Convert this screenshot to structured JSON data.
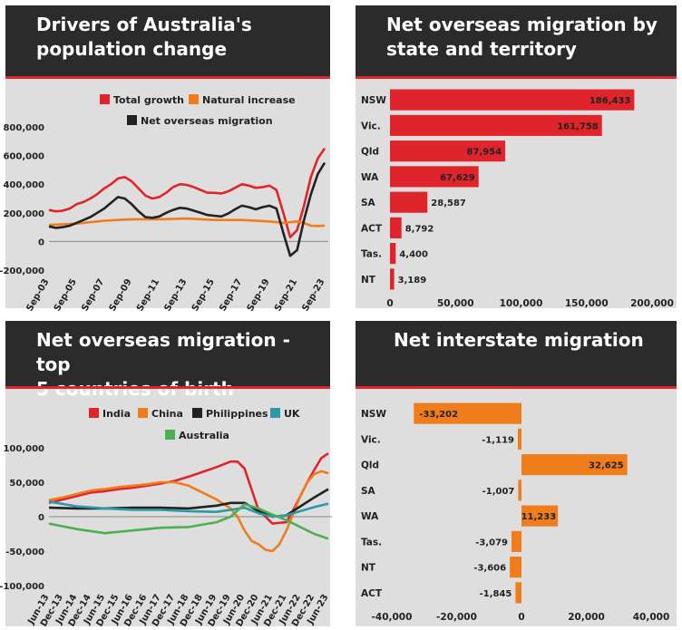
{
  "charts": [
    {
      "title_line1": "Drivers of Australia's",
      "title_line2": "population change",
      "chart_data": {
        "type": "line",
        "title": "Drivers of Australia's population change",
        "x_tick_labels": [
          "Sep-03",
          "Sep-05",
          "Sep-07",
          "Sep-09",
          "Sep-11",
          "Sep-13",
          "Sep-15",
          "Sep-17",
          "Sep-19",
          "Sep-21",
          "Sep-23"
        ],
        "x_start": "Sep-03",
        "x_end": "Sep-23",
        "ylim": [
          -200000,
          800000
        ],
        "y_ticks": [
          800000,
          600000,
          400000,
          200000,
          0,
          -200000
        ],
        "y_tick_labels": [
          "800,000",
          "600,000",
          "400,000",
          "200,000",
          "0",
          "-200,000"
        ],
        "legend_position": "top",
        "series": [
          {
            "name": "Total growth",
            "color": "#e0242c",
            "x": [
              "Sep-03",
              "Mar-04",
              "Sep-04",
              "Mar-05",
              "Sep-05",
              "Mar-06",
              "Sep-06",
              "Mar-07",
              "Sep-07",
              "Mar-08",
              "Sep-08",
              "Mar-09",
              "Sep-09",
              "Mar-10",
              "Sep-10",
              "Mar-11",
              "Sep-11",
              "Mar-12",
              "Sep-12",
              "Mar-13",
              "Sep-13",
              "Mar-14",
              "Sep-14",
              "Mar-15",
              "Sep-15",
              "Mar-16",
              "Sep-16",
              "Mar-17",
              "Sep-17",
              "Mar-18",
              "Sep-18",
              "Mar-19",
              "Sep-19",
              "Mar-20",
              "Sep-20",
              "Mar-21",
              "Sep-21",
              "Mar-22",
              "Sep-22",
              "Mar-23",
              "Sep-23"
            ],
            "y": [
              220000,
              210000,
              215000,
              230000,
              260000,
              275000,
              300000,
              330000,
              370000,
              400000,
              440000,
              450000,
              420000,
              370000,
              320000,
              300000,
              310000,
              340000,
              380000,
              400000,
              395000,
              380000,
              360000,
              340000,
              340000,
              335000,
              350000,
              375000,
              400000,
              390000,
              375000,
              380000,
              390000,
              360000,
              200000,
              30000,
              80000,
              250000,
              450000,
              580000,
              650000
            ]
          },
          {
            "name": "Natural increase",
            "color": "#f07d1c",
            "x": [
              "Sep-03",
              "Sep-05",
              "Sep-07",
              "Sep-09",
              "Sep-11",
              "Sep-13",
              "Sep-15",
              "Sep-17",
              "Sep-19",
              "Mar-20",
              "Sep-20",
              "Mar-21",
              "Sep-21",
              "Mar-22",
              "Sep-22",
              "Mar-23",
              "Sep-23"
            ],
            "y": [
              115000,
              125000,
              145000,
              155000,
              155000,
              160000,
              150000,
              150000,
              140000,
              135000,
              130000,
              135000,
              140000,
              130000,
              110000,
              108000,
              110000
            ]
          },
          {
            "name": "Net overseas migration",
            "color": "#222222",
            "x": [
              "Sep-03",
              "Mar-04",
              "Sep-04",
              "Mar-05",
              "Sep-05",
              "Mar-06",
              "Sep-06",
              "Mar-07",
              "Sep-07",
              "Mar-08",
              "Sep-08",
              "Mar-09",
              "Sep-09",
              "Mar-10",
              "Sep-10",
              "Mar-11",
              "Sep-11",
              "Mar-12",
              "Sep-12",
              "Mar-13",
              "Sep-13",
              "Mar-14",
              "Sep-14",
              "Mar-15",
              "Sep-15",
              "Mar-16",
              "Sep-16",
              "Mar-17",
              "Sep-17",
              "Mar-18",
              "Sep-18",
              "Mar-19",
              "Sep-19",
              "Mar-20",
              "Sep-20",
              "Mar-21",
              "Sep-21",
              "Mar-22",
              "Sep-22",
              "Mar-23",
              "Sep-23"
            ],
            "y": [
              105000,
              95000,
              100000,
              110000,
              130000,
              150000,
              170000,
              200000,
              230000,
              270000,
              310000,
              300000,
              260000,
              210000,
              170000,
              165000,
              175000,
              200000,
              220000,
              235000,
              230000,
              215000,
              200000,
              185000,
              180000,
              175000,
              195000,
              225000,
              250000,
              240000,
              225000,
              240000,
              250000,
              230000,
              60000,
              -100000,
              -60000,
              150000,
              330000,
              470000,
              550000
            ]
          }
        ]
      }
    },
    {
      "title_line1": "Net overseas migration by",
      "title_line2": "state and territory",
      "chart_data": {
        "type": "bar",
        "orientation": "horizontal",
        "title": "Net overseas migration by state and territory",
        "categories": [
          "NSW",
          "Vic.",
          "Qld",
          "WA",
          "SA",
          "ACT",
          "Tas.",
          "NT"
        ],
        "values": [
          186433,
          161758,
          87954,
          67629,
          28587,
          8792,
          4400,
          3189
        ],
        "value_labels": [
          "186,433",
          "161,758",
          "87,954",
          "67,629",
          "28,587",
          "8,792",
          "4,400",
          "3,189"
        ],
        "bar_color": "#e0242c",
        "xlim": [
          0,
          200000
        ],
        "x_ticks": [
          0,
          50000,
          100000,
          150000,
          200000
        ],
        "x_tick_labels": [
          "0",
          "50,000",
          "100,000",
          "150,000",
          "200,000"
        ]
      }
    },
    {
      "title_line1": "Net overseas migration - top",
      "title_line2": "5 countries of birth",
      "chart_data": {
        "type": "line",
        "title": "Net overseas migration - top 5 countries of birth",
        "x_tick_labels": [
          "Jun-13",
          "Dec-13",
          "Jun-14",
          "Dec-14",
          "Jun-15",
          "Dec-15",
          "Jun-16",
          "Dec-16",
          "Jun-17",
          "Dec-17",
          "Jun-18",
          "Dec-18",
          "Jun-19",
          "Dec-19",
          "Jun-20",
          "Dec-20",
          "Jun-21",
          "Dec-21",
          "Jun-22",
          "Dec-22",
          "Jun-23"
        ],
        "ylim": [
          -100000,
          100000
        ],
        "y_ticks": [
          100000,
          50000,
          0,
          -50000,
          -100000
        ],
        "y_tick_labels": [
          "100,000",
          "50,000",
          "0",
          "-50,000",
          "-100,000"
        ],
        "legend_position": "top",
        "series": [
          {
            "name": "India",
            "color": "#e0242c",
            "x": [
              "Jun-13",
              "Dec-13",
              "Jun-14",
              "Dec-14",
              "Jun-15",
              "Dec-15",
              "Jun-16",
              "Dec-16",
              "Jun-17",
              "Dec-17",
              "Jun-18",
              "Dec-18",
              "Jun-19",
              "Dec-19",
              "Mar-20",
              "Jun-20",
              "Sep-20",
              "Dec-20",
              "Jun-21",
              "Dec-21",
              "Mar-22",
              "Jun-22",
              "Sep-22",
              "Dec-22",
              "Mar-23",
              "Jun-23"
            ],
            "y": [
              20000,
              25000,
              30000,
              35000,
              37000,
              40000,
              42000,
              45000,
              48000,
              52000,
              58000,
              65000,
              72000,
              80000,
              80000,
              70000,
              40000,
              10000,
              -10000,
              -8000,
              10000,
              30000,
              50000,
              68000,
              85000,
              92000
            ]
          },
          {
            "name": "China",
            "color": "#f07d1c",
            "x": [
              "Jun-13",
              "Dec-13",
              "Jun-14",
              "Dec-14",
              "Jun-15",
              "Dec-15",
              "Jun-16",
              "Dec-16",
              "Jun-17",
              "Dec-17",
              "Jun-18",
              "Dec-18",
              "Jun-19",
              "Dec-19",
              "Mar-20",
              "Jun-20",
              "Sep-20",
              "Dec-20",
              "Mar-21",
              "Jun-21",
              "Sep-21",
              "Dec-21",
              "Mar-22",
              "Jun-22",
              "Sep-22",
              "Dec-22",
              "Mar-23",
              "Jun-23"
            ],
            "y": [
              24000,
              28000,
              33000,
              38000,
              40000,
              43000,
              45000,
              47000,
              50000,
              50000,
              45000,
              35000,
              25000,
              12000,
              0,
              -20000,
              -35000,
              -40000,
              -48000,
              -50000,
              -40000,
              -20000,
              5000,
              30000,
              50000,
              62000,
              66000,
              63000
            ]
          },
          {
            "name": "Philippines",
            "color": "#222222",
            "x": [
              "Jun-13",
              "Jun-14",
              "Jun-15",
              "Jun-16",
              "Jun-17",
              "Jun-18",
              "Jun-19",
              "Dec-19",
              "Jun-20",
              "Dec-20",
              "Jun-21",
              "Dec-21",
              "Jun-22",
              "Dec-22",
              "Jun-23"
            ],
            "y": [
              13000,
              12000,
              12000,
              13000,
              13000,
              12000,
              16000,
              20000,
              20000,
              8000,
              0,
              2000,
              15000,
              28000,
              40000
            ]
          },
          {
            "name": "UK",
            "color": "#2b99a8",
            "x": [
              "Jun-13",
              "Jun-14",
              "Jun-15",
              "Jun-16",
              "Jun-17",
              "Jun-18",
              "Jun-19",
              "Dec-19",
              "Jun-20",
              "Dec-20",
              "Jun-21",
              "Dec-21",
              "Jun-22",
              "Dec-22",
              "Jun-23"
            ],
            "y": [
              22000,
              15000,
              12000,
              10000,
              10000,
              8000,
              7000,
              10000,
              13000,
              5000,
              0,
              2000,
              8000,
              14000,
              19000
            ]
          },
          {
            "name": "Australia",
            "color": "#4caf50",
            "x": [
              "Jun-13",
              "Jun-14",
              "Jun-15",
              "Jun-16",
              "Jun-17",
              "Jun-18",
              "Jun-19",
              "Dec-19",
              "Jun-20",
              "Dec-20",
              "Jun-21",
              "Dec-21",
              "Jun-22",
              "Dec-22",
              "Jun-23"
            ],
            "y": [
              -10000,
              -18000,
              -24000,
              -20000,
              -16000,
              -15000,
              -8000,
              0,
              18000,
              12000,
              3000,
              -5000,
              -15000,
              -25000,
              -32000
            ]
          }
        ]
      }
    },
    {
      "title_line1": "Net interstate migration",
      "title_line2": "",
      "chart_data": {
        "type": "bar",
        "orientation": "horizontal",
        "title": "Net interstate migration",
        "categories": [
          "NSW",
          "Vic.",
          "Qld",
          "SA",
          "WA",
          "Tas.",
          "NT",
          "ACT"
        ],
        "values": [
          -33202,
          -1119,
          32625,
          -1007,
          11233,
          -3079,
          -3606,
          -1845
        ],
        "value_labels": [
          "-33,202",
          "-1,119",
          "32,625",
          "-1,007",
          "11,233",
          "-3,079",
          "-3,606",
          "-1,845"
        ],
        "bar_color": "#f07d1c",
        "xlim": [
          -40000,
          40000
        ],
        "x_ticks": [
          -40000,
          -20000,
          0,
          20000,
          40000
        ],
        "x_tick_labels": [
          "-40,000",
          "-20,000",
          "0",
          "20,000",
          "40,000"
        ]
      }
    }
  ]
}
